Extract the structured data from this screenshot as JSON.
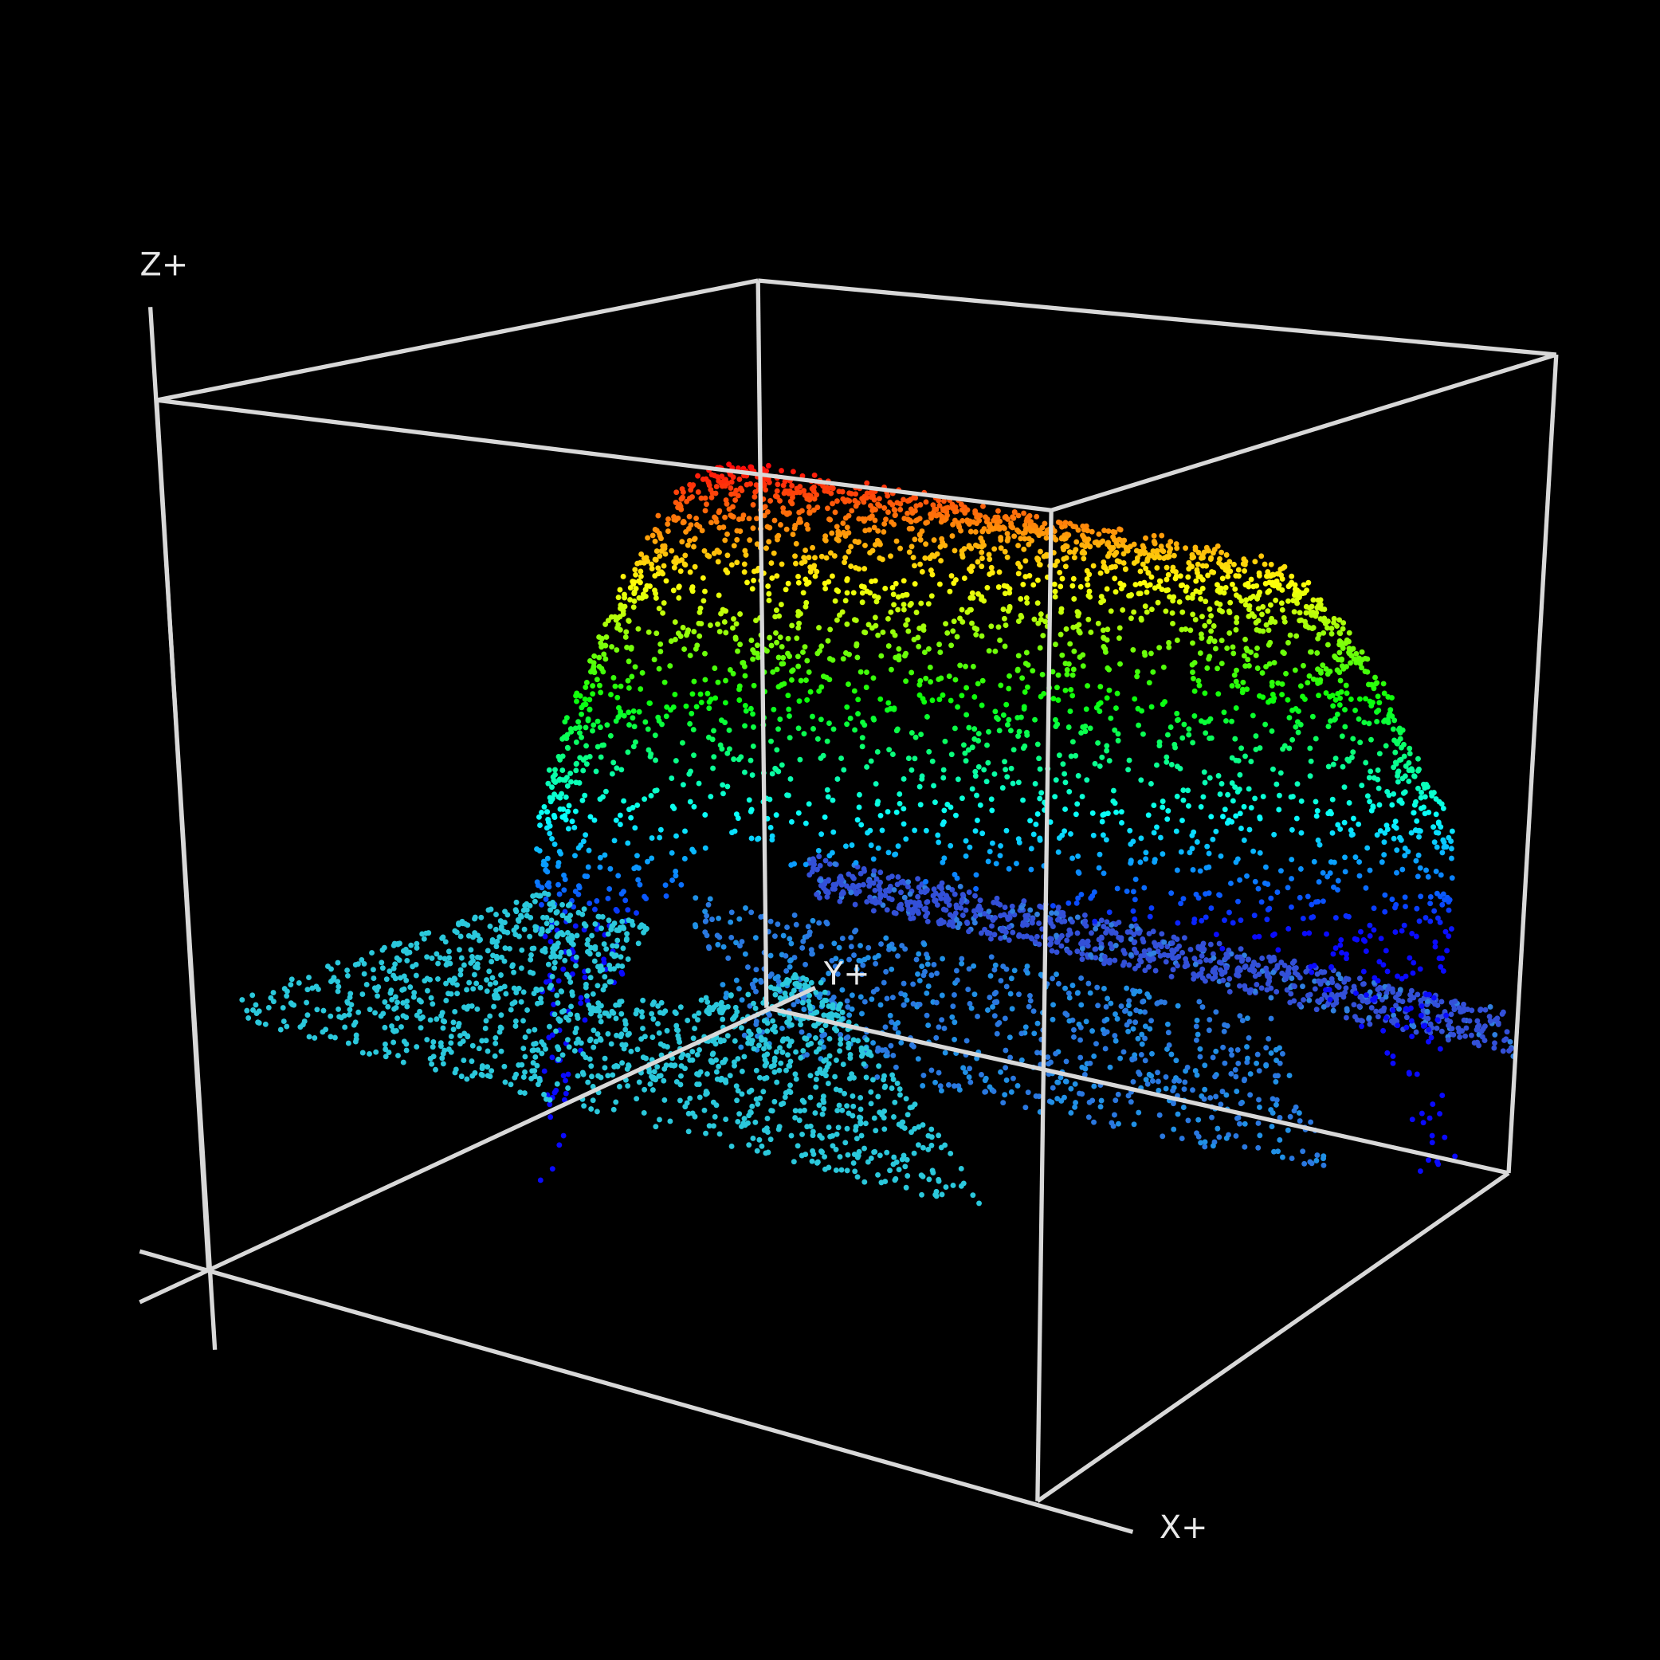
{
  "axes": {
    "x": "X+",
    "y": "Y+",
    "z": "Z+"
  }
}
